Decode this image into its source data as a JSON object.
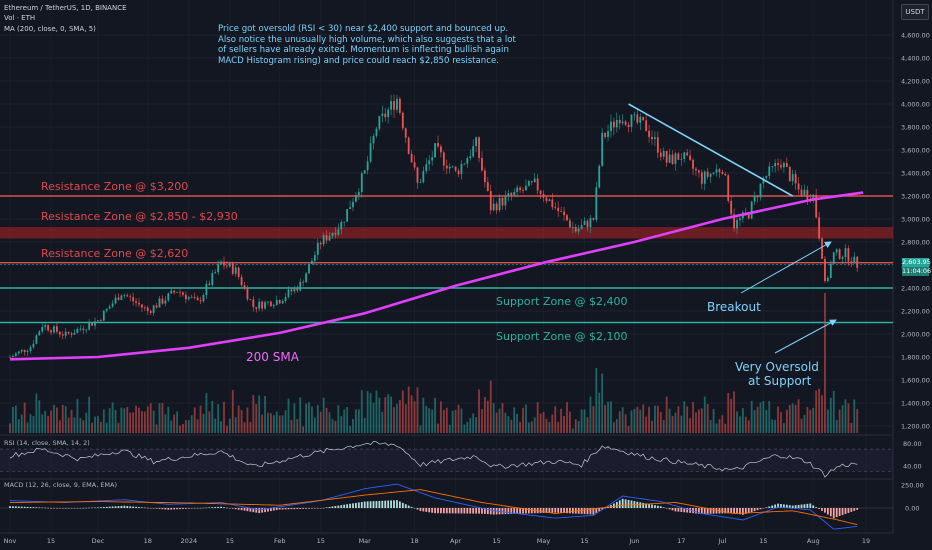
{
  "header": {
    "ticker": "Ethereum / TetherUS, 1D, BINANCE",
    "volume": "Vol · ETH",
    "ma": "MA (200, close, 0, SMA, 5)",
    "currency": "USDT"
  },
  "note_lines": [
    "Price got oversold (RSI < 30) near $2,400 support and bounced up.",
    "Also notice the unusually high volume, which also suggests that a lot",
    "of sellers have already exited. Momentum is inflecting bullish again",
    "MACD Histogram rising) and price could reach $2,850 resistance."
  ],
  "annotations": {
    "resistance_3200": "Resistance Zone @ $3,200",
    "resistance_2850": "Resistance Zone @ $2,850 - $2,930",
    "resistance_2620": "Resistance Zone @ $2,620",
    "support_2400": "Support Zone @ $2,400",
    "support_2100": "Support Zone @ $2,100",
    "sma_label": "200 SMA",
    "breakout": "Breakout",
    "oversold_1": "Very Oversold",
    "oversold_2": "at Support"
  },
  "last_price": {
    "value": "2,603.95",
    "countdown": "11:04:06"
  },
  "indicators": {
    "rsi_title": "RSI (14, close, SMA, 14, 2)",
    "macd_title": "MACD (12, 26, close, 9, EMA, EMA)"
  },
  "colors": {
    "background": "#131722",
    "bull": "#26a69a",
    "bear": "#ef5350",
    "sma": "#e040fb",
    "resistance": "#ef5350",
    "support": "#26a69a",
    "annotation": "#7dd3fc",
    "trendline": "#7dd3fc"
  },
  "chart_data": [
    {
      "type": "candlestick",
      "title": "Ethereum / TetherUS, 1D, BINANCE",
      "y_axis_ticks": [
        1200,
        1400,
        1600,
        1800,
        2000,
        2200,
        2400,
        2600,
        2800,
        3000,
        3200,
        3400,
        3600,
        3800,
        4000,
        4200,
        4400,
        4600
      ],
      "y_axis_labels": [
        "1,200.00",
        "1,400.00",
        "1,600.00",
        "1,800.00",
        "2,000.00",
        "2,200.00",
        "2,400.00",
        "2,600.00",
        "2,800.00",
        "3,000.00",
        "3,200.00",
        "3,400.00",
        "3,600.00",
        "3,800.00",
        "4,000.00",
        "4,200.00",
        "4,400.00",
        "4,600.00"
      ],
      "x_axis_labels": [
        "Nov",
        "15",
        "Dec",
        "18",
        "2024",
        "15",
        "Feb",
        "15",
        "Mar",
        "18",
        "Apr",
        "15",
        "May",
        "15",
        "Jun",
        "17",
        "Jul",
        "15",
        "Aug",
        "19"
      ],
      "ylim": [
        1050,
        4800
      ],
      "close_path": [
        {
          "date": "2023-11-01",
          "close": 1800
        },
        {
          "date": "2023-11-08",
          "close": 1890
        },
        {
          "date": "2023-11-12",
          "close": 2080
        },
        {
          "date": "2023-11-20",
          "close": 1990
        },
        {
          "date": "2023-12-01",
          "close": 2120
        },
        {
          "date": "2023-12-09",
          "close": 2360
        },
        {
          "date": "2023-12-18",
          "close": 2200
        },
        {
          "date": "2023-12-28",
          "close": 2380
        },
        {
          "date": "2024-01-04",
          "close": 2270
        },
        {
          "date": "2024-01-12",
          "close": 2620
        },
        {
          "date": "2024-01-17",
          "close": 2550
        },
        {
          "date": "2024-01-23",
          "close": 2240
        },
        {
          "date": "2024-02-01",
          "close": 2300
        },
        {
          "date": "2024-02-08",
          "close": 2430
        },
        {
          "date": "2024-02-15",
          "close": 2800
        },
        {
          "date": "2024-02-22",
          "close": 2960
        },
        {
          "date": "2024-03-01",
          "close": 3400
        },
        {
          "date": "2024-03-05",
          "close": 3800
        },
        {
          "date": "2024-03-12",
          "close": 4050
        },
        {
          "date": "2024-03-19",
          "close": 3300
        },
        {
          "date": "2024-03-25",
          "close": 3600
        },
        {
          "date": "2024-04-01",
          "close": 3400
        },
        {
          "date": "2024-04-08",
          "close": 3650
        },
        {
          "date": "2024-04-13",
          "close": 3100
        },
        {
          "date": "2024-04-20",
          "close": 3200
        },
        {
          "date": "2024-04-28",
          "close": 3300
        },
        {
          "date": "2024-05-05",
          "close": 3100
        },
        {
          "date": "2024-05-12",
          "close": 2900
        },
        {
          "date": "2024-05-18",
          "close": 3000
        },
        {
          "date": "2024-05-21",
          "close": 3700
        },
        {
          "date": "2024-05-27",
          "close": 3900
        },
        {
          "date": "2024-06-05",
          "close": 3800
        },
        {
          "date": "2024-06-12",
          "close": 3500
        },
        {
          "date": "2024-06-17",
          "close": 3550
        },
        {
          "date": "2024-06-24",
          "close": 3350
        },
        {
          "date": "2024-07-01",
          "close": 3450
        },
        {
          "date": "2024-07-05",
          "close": 2950
        },
        {
          "date": "2024-07-10",
          "close": 3050
        },
        {
          "date": "2024-07-15",
          "close": 3350
        },
        {
          "date": "2024-07-21",
          "close": 3500
        },
        {
          "date": "2024-07-27",
          "close": 3250
        },
        {
          "date": "2024-08-01",
          "close": 3200
        },
        {
          "date": "2024-08-04",
          "close": 2700
        },
        {
          "date": "2024-08-05",
          "close": 2420
        },
        {
          "date": "2024-08-08",
          "close": 2690
        },
        {
          "date": "2024-08-12",
          "close": 2700
        },
        {
          "date": "2024-08-16",
          "close": 2604
        }
      ],
      "series": [
        {
          "name": "MA (200, close, 0, SMA, 5)",
          "values": [
            {
              "date": "2023-11-01",
              "value": 1780
            },
            {
              "date": "2023-12-01",
              "value": 1800
            },
            {
              "date": "2024-01-01",
              "value": 1880
            },
            {
              "date": "2024-02-01",
              "value": 2010
            },
            {
              "date": "2024-03-01",
              "value": 2180
            },
            {
              "date": "2024-04-01",
              "value": 2420
            },
            {
              "date": "2024-05-01",
              "value": 2620
            },
            {
              "date": "2024-06-01",
              "value": 2800
            },
            {
              "date": "2024-07-01",
              "value": 3000
            },
            {
              "date": "2024-08-01",
              "value": 3170
            },
            {
              "date": "2024-08-18",
              "value": 3230
            }
          ]
        }
      ],
      "horizontal_levels": [
        3200,
        2880,
        2620,
        2400,
        2100
      ],
      "trendline": [
        {
          "date": "2024-05-30",
          "value": 4000
        },
        {
          "date": "2024-07-25",
          "value": 3200
        }
      ],
      "last_price": 2603.95
    },
    {
      "type": "line",
      "title": "RSI (14, close, SMA, 14, 2)",
      "y_axis_labels": [
        "80.00",
        "40.00"
      ],
      "ylim": [
        20,
        90
      ],
      "bands": [
        30,
        70
      ],
      "series": [
        {
          "values": [
            {
              "date": "2023-11-01",
              "value": 58
            },
            {
              "date": "2023-11-12",
              "value": 70
            },
            {
              "date": "2023-11-25",
              "value": 52
            },
            {
              "date": "2023-12-09",
              "value": 68
            },
            {
              "date": "2023-12-20",
              "value": 48
            },
            {
              "date": "2024-01-12",
              "value": 66
            },
            {
              "date": "2024-01-23",
              "value": 38
            },
            {
              "date": "2024-02-10",
              "value": 60
            },
            {
              "date": "2024-03-01",
              "value": 80
            },
            {
              "date": "2024-03-12",
              "value": 78
            },
            {
              "date": "2024-03-20",
              "value": 42
            },
            {
              "date": "2024-04-08",
              "value": 58
            },
            {
              "date": "2024-04-14",
              "value": 38
            },
            {
              "date": "2024-05-05",
              "value": 48
            },
            {
              "date": "2024-05-14",
              "value": 42
            },
            {
              "date": "2024-05-21",
              "value": 76
            },
            {
              "date": "2024-06-05",
              "value": 56
            },
            {
              "date": "2024-06-24",
              "value": 40
            },
            {
              "date": "2024-07-05",
              "value": 32
            },
            {
              "date": "2024-07-20",
              "value": 60
            },
            {
              "date": "2024-07-30",
              "value": 48
            },
            {
              "date": "2024-08-05",
              "value": 24
            },
            {
              "date": "2024-08-10",
              "value": 40
            },
            {
              "date": "2024-08-16",
              "value": 44
            }
          ]
        }
      ]
    },
    {
      "type": "line",
      "title": "MACD (12, 26, close, 9, EMA, EMA)",
      "y_axis_labels": [
        "250.00",
        "0.00"
      ],
      "ylim": [
        -320,
        320
      ],
      "series": [
        {
          "name": "MACD",
          "values": [
            {
              "date": "2023-11-01",
              "value": 80
            },
            {
              "date": "2023-11-20",
              "value": 60
            },
            {
              "date": "2023-12-10",
              "value": 90
            },
            {
              "date": "2023-12-25",
              "value": 40
            },
            {
              "date": "2024-01-12",
              "value": 60
            },
            {
              "date": "2024-01-25",
              "value": -20
            },
            {
              "date": "2024-02-15",
              "value": 80
            },
            {
              "date": "2024-03-01",
              "value": 210
            },
            {
              "date": "2024-03-12",
              "value": 260
            },
            {
              "date": "2024-03-25",
              "value": 110
            },
            {
              "date": "2024-04-14",
              "value": -30
            },
            {
              "date": "2024-05-05",
              "value": -110
            },
            {
              "date": "2024-05-18",
              "value": -80
            },
            {
              "date": "2024-05-28",
              "value": 130
            },
            {
              "date": "2024-06-10",
              "value": 70
            },
            {
              "date": "2024-06-24",
              "value": -60
            },
            {
              "date": "2024-07-08",
              "value": -130
            },
            {
              "date": "2024-07-20",
              "value": 10
            },
            {
              "date": "2024-07-31",
              "value": -20
            },
            {
              "date": "2024-08-08",
              "value": -230
            },
            {
              "date": "2024-08-16",
              "value": -200
            }
          ]
        },
        {
          "name": "Signal",
          "values": [
            {
              "date": "2023-11-01",
              "value": 60
            },
            {
              "date": "2023-12-01",
              "value": 70
            },
            {
              "date": "2024-01-01",
              "value": 55
            },
            {
              "date": "2024-02-01",
              "value": 30
            },
            {
              "date": "2024-03-01",
              "value": 140
            },
            {
              "date": "2024-03-20",
              "value": 200
            },
            {
              "date": "2024-04-10",
              "value": 60
            },
            {
              "date": "2024-05-05",
              "value": -60
            },
            {
              "date": "2024-05-28",
              "value": 30
            },
            {
              "date": "2024-06-15",
              "value": 60
            },
            {
              "date": "2024-07-05",
              "value": -60
            },
            {
              "date": "2024-07-25",
              "value": -30
            },
            {
              "date": "2024-08-08",
              "value": -120
            },
            {
              "date": "2024-08-16",
              "value": -180
            }
          ]
        }
      ]
    }
  ]
}
